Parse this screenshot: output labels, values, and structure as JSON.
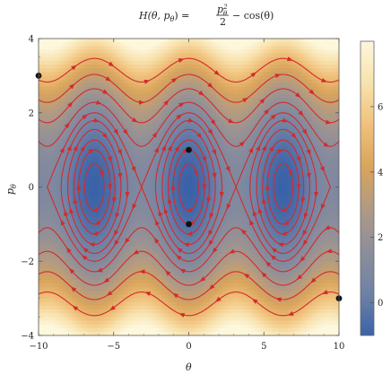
{
  "chart_data": {
    "type": "heatmap",
    "title": {
      "lhs": "H(θ, p",
      "lhs_sub": "θ",
      "rel": ") =",
      "frac_num": "p",
      "frac_num_sub": "θ",
      "frac_num_sup": "2",
      "frac_den": "2",
      "rhs": "− cos(θ)"
    },
    "xlabel": "θ",
    "ylabel": "p",
    "ylabel_sub": "θ",
    "xlim": [
      -10,
      10
    ],
    "ylim": [
      -4,
      4
    ],
    "x_ticks": [
      -10,
      -5,
      0,
      5,
      10
    ],
    "x_tick_labels": [
      "−10",
      "−5",
      "0",
      "5",
      "10"
    ],
    "y_ticks": [
      -4,
      -2,
      0,
      2,
      4
    ],
    "y_tick_labels": [
      "−4",
      "−2",
      "0",
      "2",
      "4"
    ],
    "function": "p^2/2 - cos(theta)",
    "contour_levels": [
      -0.8,
      -0.5,
      -0.2,
      0.2,
      0.6,
      1.0,
      1.6,
      2.5,
      3.6,
      5.0
    ],
    "stream_color": "#d42a2a",
    "points_color": "#111111",
    "colorbar": {
      "ticks": [
        0,
        2,
        4,
        6
      ],
      "tick_labels": [
        "0",
        "2",
        "4",
        "6"
      ],
      "range": [
        -1,
        8
      ],
      "colors": [
        "#3a62a8",
        "#6f82a6",
        "#8d8e9a",
        "#b09a84",
        "#d9a45c",
        "#f0c07a",
        "#f8e2ad",
        "#fdf7dc"
      ]
    },
    "points": [
      {
        "x": -10,
        "y": 3
      },
      {
        "x": 0,
        "y": 1
      },
      {
        "x": 0,
        "y": -1
      },
      {
        "x": 10,
        "y": -3
      }
    ]
  }
}
